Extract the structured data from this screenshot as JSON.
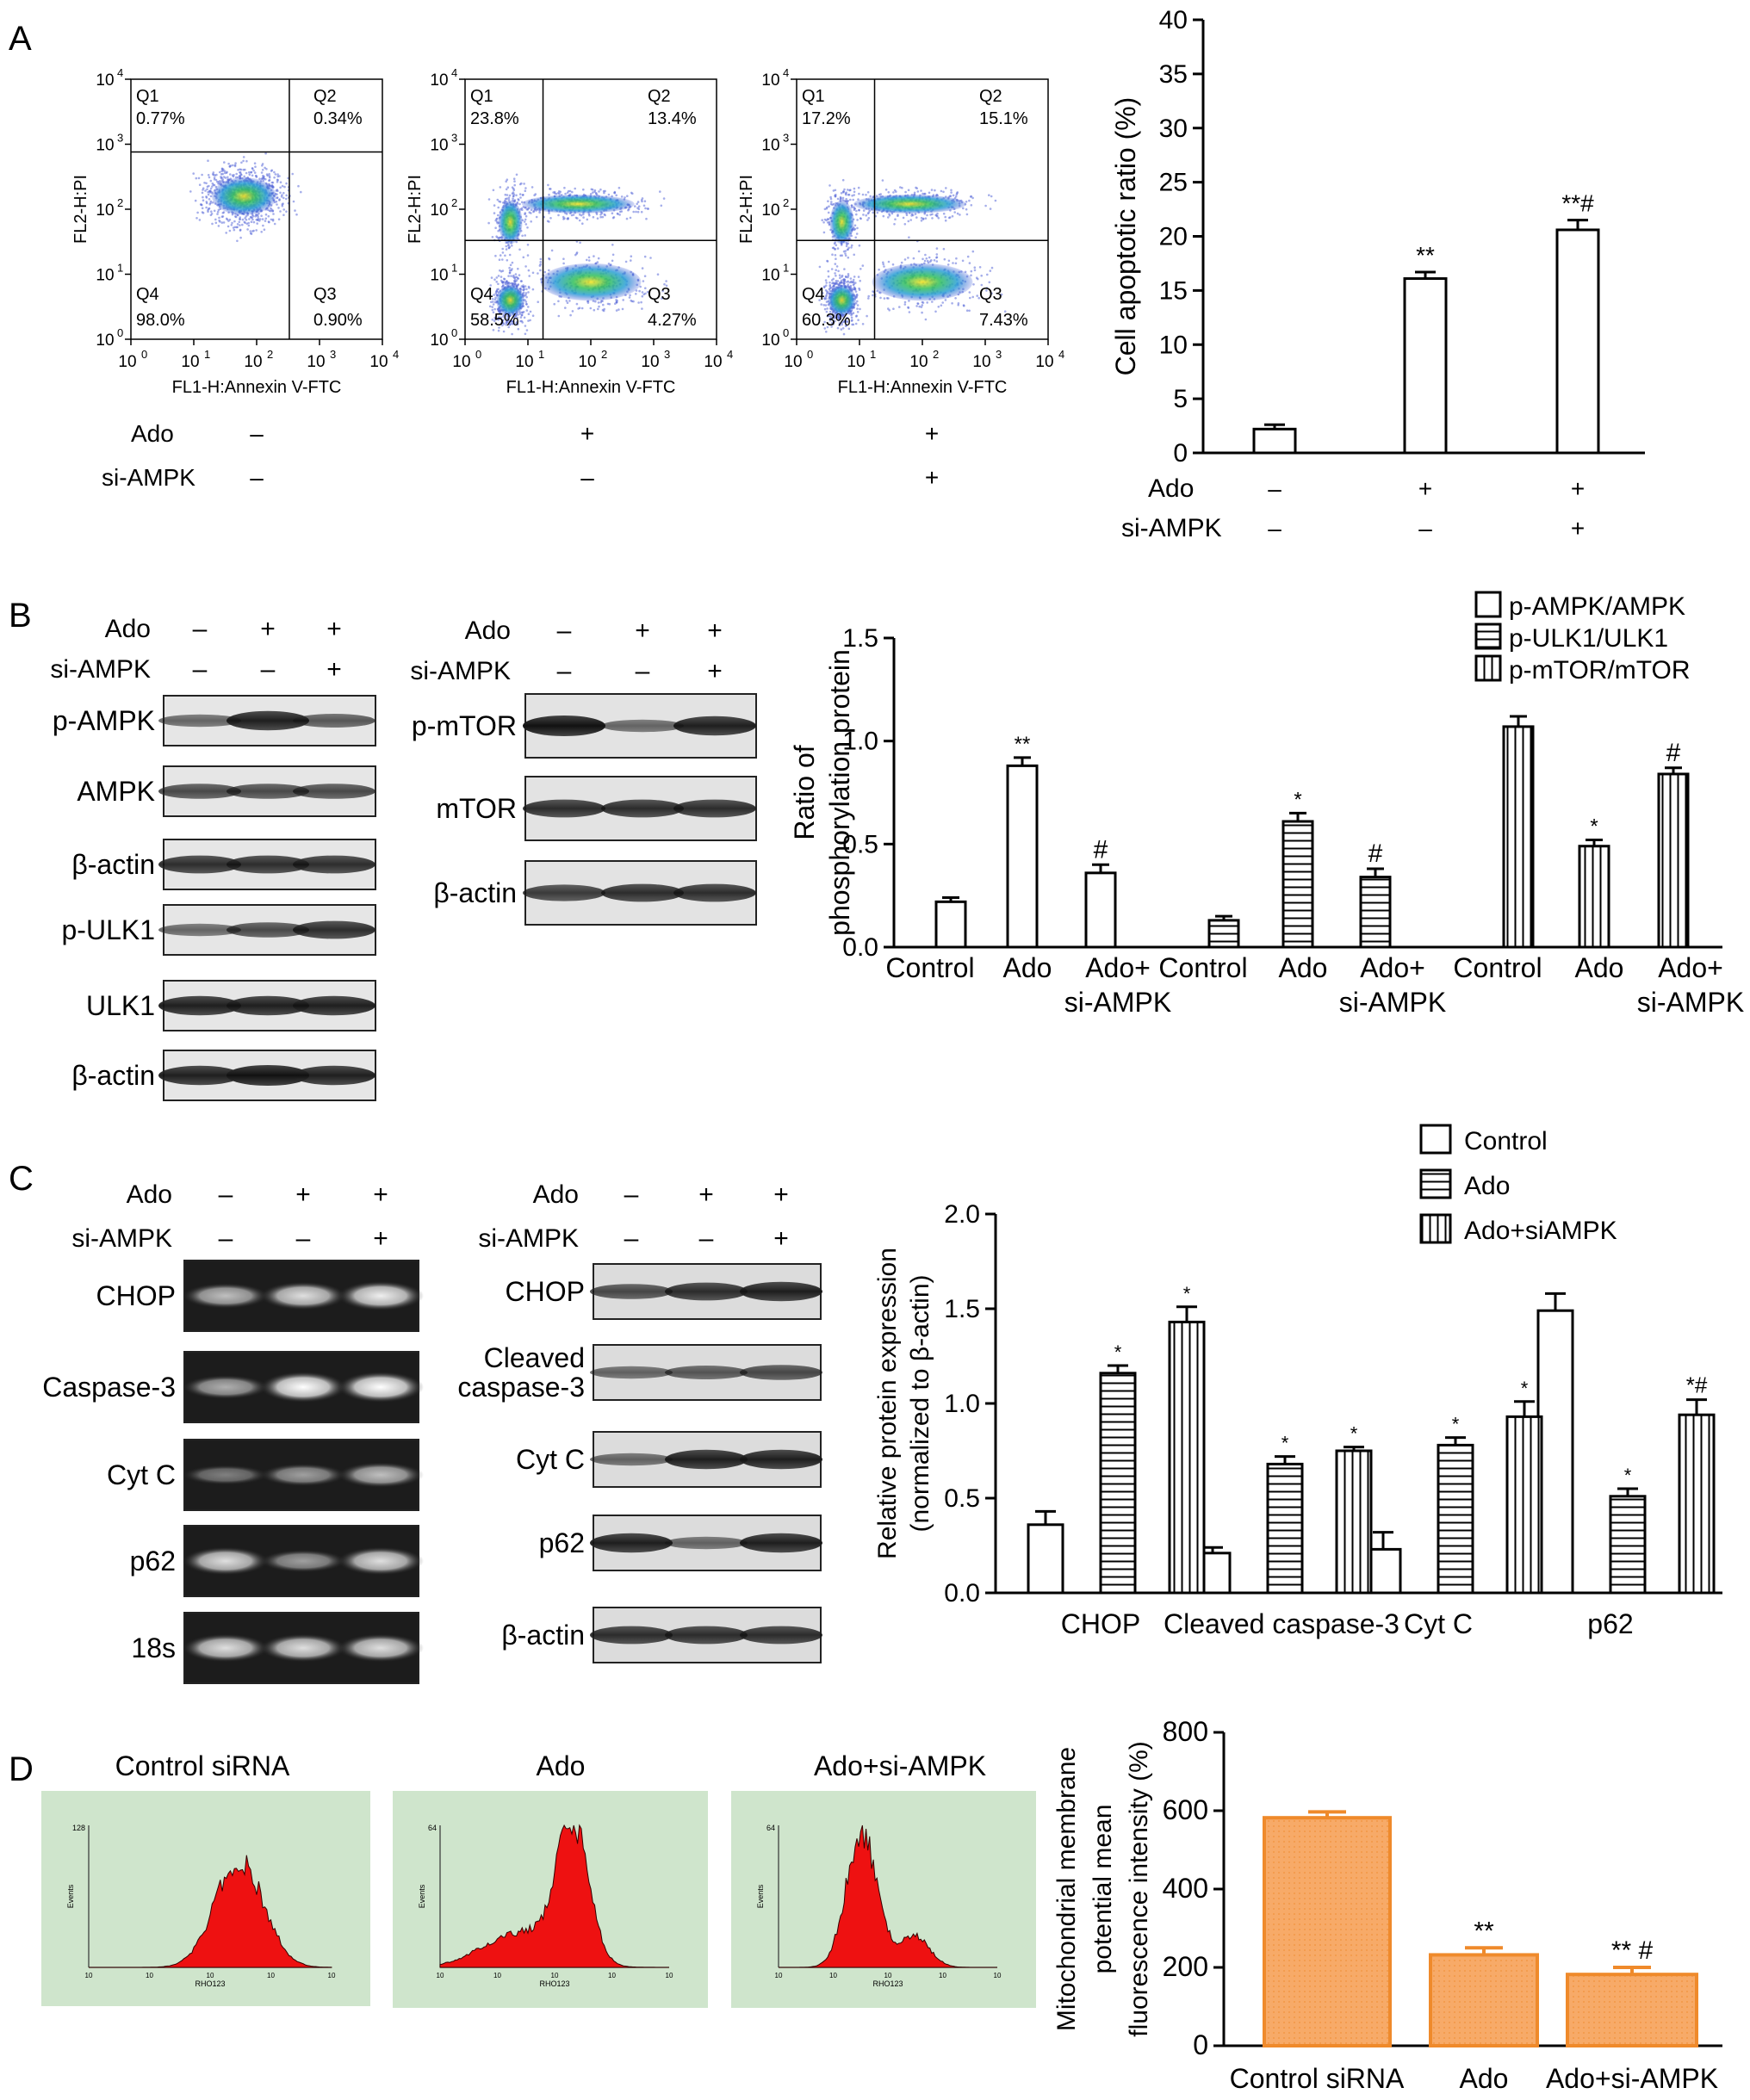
{
  "panels": {
    "A": "A",
    "B": "B",
    "C": "C",
    "D": "D"
  },
  "treatment_labels": {
    "ado": "Ado",
    "si": "si-AMPK"
  },
  "panel_a": {
    "flow_plots": [
      {
        "quadrants": {
          "Q1": "0.77%",
          "Q2": "0.34%",
          "Q3": "0.90%",
          "Q4": "98.0%"
        }
      },
      {
        "quadrants": {
          "Q1": "23.8%",
          "Q2": "13.4%",
          "Q3": "4.27%",
          "Q4": "58.5%"
        }
      },
      {
        "quadrants": {
          "Q1": "17.2%",
          "Q2": "15.1%",
          "Q3": "7.43%",
          "Q4": "60.3%"
        }
      }
    ],
    "flow_xlabel": "FL1-H:Annexin V-FTC",
    "flow_ylabel": "FL2-H:PI",
    "log_ticks": [
      "10",
      "10",
      "10",
      "10",
      "10"
    ],
    "log_exps": [
      "0",
      "1",
      "2",
      "3",
      "4"
    ],
    "quadrant_names": [
      "Q1",
      "Q2",
      "Q3",
      "Q4"
    ],
    "ado_signs": [
      "–",
      "+",
      "+"
    ],
    "si_signs": [
      "–",
      "–",
      "+"
    ]
  },
  "panel_b": {
    "blot1": {
      "ado": [
        "–",
        "+",
        "+"
      ],
      "si": [
        "–",
        "–",
        "+"
      ],
      "rows": [
        "p-AMPK",
        "AMPK",
        "β-actin",
        "p-ULK1",
        "ULK1",
        "β-actin"
      ]
    },
    "blot2": {
      "ado": [
        "–",
        "+",
        "+"
      ],
      "si": [
        "–",
        "–",
        "+"
      ],
      "rows": [
        "p-mTOR",
        "mTOR",
        "β-actin"
      ]
    }
  },
  "panel_c": {
    "gel": {
      "ado": [
        "–",
        "+",
        "+"
      ],
      "si": [
        "–",
        "–",
        "+"
      ],
      "rows": [
        "CHOP",
        "Caspase-3",
        "Cyt C",
        "p62",
        "18s"
      ]
    },
    "blot": {
      "ado": [
        "–",
        "+",
        "+"
      ],
      "si": [
        "–",
        "–",
        "+"
      ],
      "rows": [
        "CHOP",
        "Cleaved caspase-3",
        "Cyt C",
        "p62",
        "β-actin"
      ]
    }
  },
  "panel_d": {
    "histograms": [
      "Control siRNA",
      "Ado",
      "Ado+si-AMPK"
    ],
    "hist_xlabel": "RHO123",
    "hist_ylabel": "Events",
    "hist_ymax": [
      "128",
      "64",
      "64"
    ]
  },
  "chart_data": [
    {
      "type": "bar",
      "panel": "A",
      "categories": [
        "Control",
        "Ado",
        "Ado+si-AMPK"
      ],
      "values": [
        2.2,
        16.1,
        20.6
      ],
      "errors": [
        0.4,
        0.6,
        0.9
      ],
      "significance": [
        "",
        "**",
        "**#"
      ],
      "ylabel": "Cell apoptotic ratio (%)",
      "ylim": [
        0,
        40
      ],
      "yticks": [
        0,
        5,
        10,
        15,
        20,
        25,
        30,
        35,
        40
      ],
      "ado_signs": [
        "–",
        "+",
        "+"
      ],
      "si_signs": [
        "–",
        "–",
        "+"
      ],
      "color": "#ffffff"
    },
    {
      "type": "bar",
      "panel": "B",
      "groups": [
        {
          "x_labels": [
            "Control",
            "Ado",
            "Ado+\nsi-AMPK"
          ],
          "series": "p-AMPK/AMPK",
          "values": [
            0.22,
            0.88,
            0.36
          ],
          "errors": [
            0.02,
            0.04,
            0.04
          ],
          "significance": [
            "",
            "**",
            "#"
          ]
        },
        {
          "x_labels": [
            "Control",
            "Ado",
            "Ado+\nsi-AMPK"
          ],
          "series": "p-ULK1/ULK1",
          "values": [
            0.13,
            0.61,
            0.34
          ],
          "errors": [
            0.02,
            0.04,
            0.04
          ],
          "significance": [
            "",
            "*",
            "#"
          ]
        },
        {
          "x_labels": [
            "Control",
            "Ado",
            "Ado+\nsi-AMPK"
          ],
          "series": "p-mTOR/mTOR",
          "values": [
            1.07,
            0.49,
            0.84
          ],
          "errors": [
            0.05,
            0.03,
            0.03
          ],
          "significance": [
            "",
            "*",
            "#"
          ]
        }
      ],
      "legend": [
        "p-AMPK/AMPK",
        "p-ULK1/ULK1",
        "p-mTOR/mTOR"
      ],
      "ylabel": "Ratio of\nphosphorylation protein",
      "ylim": [
        0,
        1.5
      ],
      "yticks": [
        "0.0",
        "0.5",
        "1.0",
        "1.5"
      ],
      "legend_position": "top-right"
    },
    {
      "type": "bar",
      "panel": "C",
      "categories": [
        "CHOP",
        "Cleaved caspase-3",
        "Cyt C",
        "p62"
      ],
      "series": [
        {
          "name": "Control",
          "values": [
            0.36,
            0.21,
            0.23,
            1.49
          ],
          "errors": [
            0.07,
            0.03,
            0.09,
            0.09
          ],
          "significance": [
            "",
            "",
            "",
            ""
          ]
        },
        {
          "name": "Ado",
          "values": [
            1.16,
            0.68,
            0.78,
            0.51
          ],
          "errors": [
            0.04,
            0.04,
            0.04,
            0.04
          ],
          "significance": [
            "*",
            "*",
            "*",
            "*"
          ]
        },
        {
          "name": "Ado+siAMPK",
          "values": [
            1.43,
            0.75,
            0.93,
            0.94
          ],
          "errors": [
            0.08,
            0.02,
            0.08,
            0.08
          ],
          "significance": [
            "*",
            "*",
            "*",
            "*#"
          ]
        }
      ],
      "ylabel": "Relative protein expression\n(normalized to β-actin)",
      "ylim": [
        0,
        2.0
      ],
      "yticks": [
        "0.0",
        "0.5",
        "1.0",
        "1.5",
        "2.0"
      ],
      "legend_position": "top-right"
    },
    {
      "type": "bar",
      "panel": "D",
      "categories": [
        "Control siRNA",
        "Ado",
        "Ado+si-AMPK"
      ],
      "values": [
        582,
        232,
        182
      ],
      "errors": [
        15,
        18,
        18
      ],
      "significance": [
        "",
        "**",
        "** #"
      ],
      "ylabel": "Mitochondrial membrane\npotential mean\nfluorescence intensity (%)",
      "ylim": [
        0,
        800
      ],
      "yticks": [
        0,
        200,
        400,
        600,
        800
      ],
      "color": "#f6a560",
      "edge_color": "#ef8a2b"
    }
  ]
}
